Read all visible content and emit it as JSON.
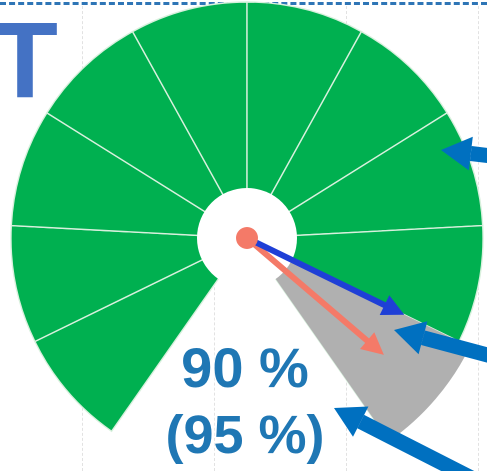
{
  "partial_heading": "T",
  "readout": {
    "value_label": "90 %",
    "target_label": "(95 %)"
  },
  "chart_data": {
    "type": "gauge",
    "title": "",
    "scale": [
      0,
      100
    ],
    "sections": 10,
    "value": 90,
    "target": 95,
    "grey_band": [
      90,
      100
    ],
    "colors": {
      "scale": "#00b050",
      "grey_band": "#b0b0b0",
      "value_needle": "#1f3fd6",
      "target_needle": "#f47a68",
      "hub_dot": "#f47a68",
      "callout_arrows": "#0070c0",
      "readout_text": "#1f77b4",
      "heading": "#4472c4"
    }
  }
}
